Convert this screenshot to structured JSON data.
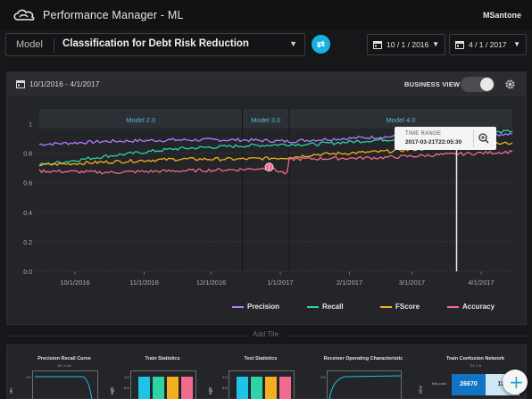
{
  "header": {
    "app_title": "Performance Manager - ML",
    "user": "MSantone",
    "logo_icon": "cloud-logo-icon"
  },
  "model_bar": {
    "label": "Model",
    "selected_model": "Classification for Debt Risk Reduction",
    "swap_icon": "swap-icon",
    "start_date": "10 / 1 / 2016",
    "end_date": "4 / 1 / 2017",
    "accent": "#17b2e0"
  },
  "panel": {
    "date_range": "10/1/2016 - 4/1/2017",
    "business_view_label": "BUSINESS VIEW",
    "business_view_on": false,
    "settings_icon": "gear-icon"
  },
  "tooltip": {
    "label": "TIME RANGE",
    "value": "2017-03-21​T22:05:30",
    "zoom_icon": "zoom-icon"
  },
  "chart_data": {
    "type": "line",
    "x_tick_labels": [
      "10/1/2016",
      "11/1/2016",
      "12/1/2016",
      "1/1/2017",
      "2/1/2017",
      "3/1/2017",
      "4/1/2017"
    ],
    "xlim": [
      "2016-09-15",
      "2017-04-15"
    ],
    "y_tick_labels": [
      "0.0",
      "0.2",
      "0.4",
      "0.6",
      "0.8",
      "1"
    ],
    "ylim": [
      0.0,
      1.1
    ],
    "grid": true,
    "legend_position": "bottom-right",
    "regions": [
      {
        "label": "Model 2.0",
        "start": "2016-09-15",
        "end": "2016-12-15"
      },
      {
        "label": "Model 3.0",
        "start": "2016-12-15",
        "end": "2017-01-05"
      },
      {
        "label": "Model 4.0",
        "start": "2017-01-05",
        "end": "2017-04-15"
      }
    ],
    "marker_date": "2017-03-21",
    "alert_date": "2016-12-27",
    "series": [
      {
        "name": "Precision",
        "color": "#b57bff",
        "x": [
          "2016-09-15",
          "2016-10-15",
          "2016-11-15",
          "2016-12-15",
          "2017-01-05",
          "2017-01-15",
          "2017-02-15",
          "2017-03-15",
          "2017-04-15"
        ],
        "y": [
          0.86,
          0.88,
          0.89,
          0.89,
          0.88,
          0.89,
          0.91,
          0.92,
          0.93
        ]
      },
      {
        "name": "Recall",
        "color": "#2ed3a6",
        "x": [
          "2016-09-15",
          "2016-10-15",
          "2016-11-15",
          "2016-12-15",
          "2017-01-05",
          "2017-01-15",
          "2017-02-15",
          "2017-03-15",
          "2017-04-15"
        ],
        "y": [
          0.72,
          0.78,
          0.83,
          0.85,
          0.86,
          0.86,
          0.89,
          0.91,
          0.95
        ]
      },
      {
        "name": "FScore",
        "color": "#f2b01e",
        "x": [
          "2016-09-15",
          "2016-10-15",
          "2016-11-15",
          "2016-12-15",
          "2017-01-05",
          "2017-01-15",
          "2017-02-15",
          "2017-03-15",
          "2017-04-15"
        ],
        "y": [
          0.72,
          0.74,
          0.76,
          0.76,
          0.77,
          0.79,
          0.81,
          0.84,
          0.87
        ]
      },
      {
        "name": "Accuracy",
        "color": "#f26a8d",
        "x": [
          "2016-09-15",
          "2016-10-15",
          "2016-11-15",
          "2016-12-15",
          "2016-12-27",
          "2017-01-04",
          "2017-01-05",
          "2017-02-15",
          "2017-03-15",
          "2017-04-15"
        ],
        "y": [
          0.68,
          0.67,
          0.68,
          0.69,
          0.7,
          0.66,
          0.76,
          0.77,
          0.79,
          0.81
        ]
      }
    ]
  },
  "add_tile_label": "Add Tile",
  "tiles": [
    {
      "title": "Precision Recall Curve",
      "subtitle": "AP: 0.84"
    },
    {
      "title": "Train Statistics",
      "subtitle": ""
    },
    {
      "title": "Test Statistics",
      "subtitle": ""
    },
    {
      "title": "Receiver Operating Characteristic",
      "subtitle": ""
    },
    {
      "title": "Train Confusion Network",
      "subtitle": "TH: 0.5",
      "cells": [
        "26670",
        "115"
      ],
      "row_label": "fully paid",
      "col_label": "label"
    }
  ],
  "tile_axis": {
    "y_top": "1.0",
    "y_mid": "0.6",
    "y_label_1": "on",
    "y_label_2": "ags"
  },
  "tile_bar_colors": [
    "#1ec3e8",
    "#2ed3a6",
    "#f2b01e",
    "#f26a8d"
  ],
  "fab_icon": "plus-icon"
}
